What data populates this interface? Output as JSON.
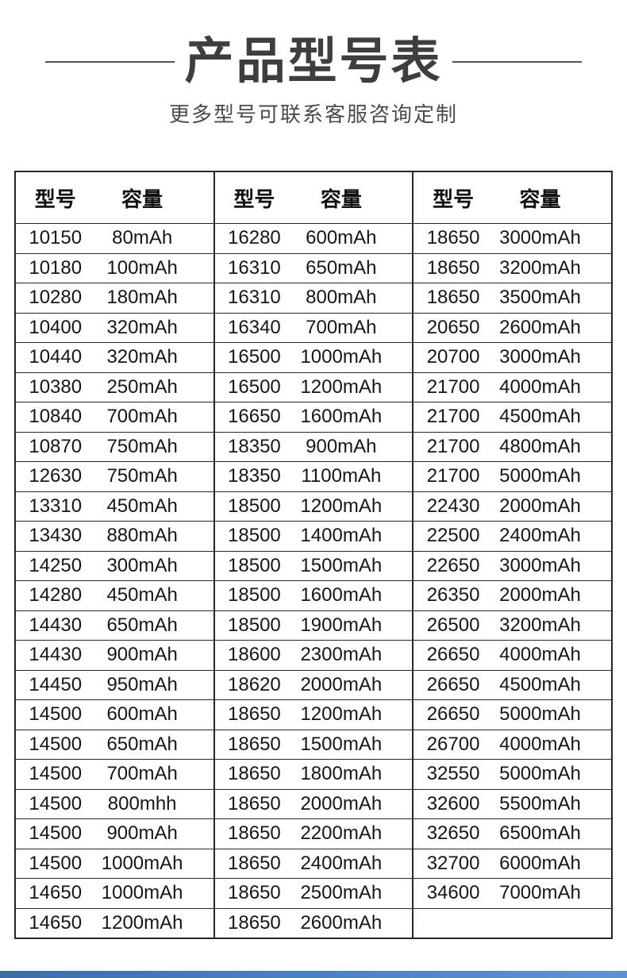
{
  "page": {
    "title": "产品型号表",
    "subtitle": "更多型号可联系客服咨询定制",
    "accent_color": "#4a80b8",
    "border_color": "#262626"
  },
  "table": {
    "column_headers": {
      "model": "型号",
      "capacity": "容量"
    },
    "groups": [
      {
        "rows": [
          {
            "model": "10150",
            "capacity": "80mAh"
          },
          {
            "model": "10180",
            "capacity": "100mAh"
          },
          {
            "model": "10280",
            "capacity": "180mAh"
          },
          {
            "model": "10400",
            "capacity": "320mAh"
          },
          {
            "model": "10440",
            "capacity": "320mAh"
          },
          {
            "model": "10380",
            "capacity": "250mAh"
          },
          {
            "model": "10840",
            "capacity": "700mAh"
          },
          {
            "model": "10870",
            "capacity": "750mAh"
          },
          {
            "model": "12630",
            "capacity": "750mAh"
          },
          {
            "model": "13310",
            "capacity": "450mAh"
          },
          {
            "model": "13430",
            "capacity": "880mAh"
          },
          {
            "model": "14250",
            "capacity": "300mAh"
          },
          {
            "model": "14280",
            "capacity": "450mAh"
          },
          {
            "model": "14430",
            "capacity": "650mAh"
          },
          {
            "model": "14430",
            "capacity": "900mAh"
          },
          {
            "model": "14450",
            "capacity": "950mAh"
          },
          {
            "model": "14500",
            "capacity": "600mAh"
          },
          {
            "model": "14500",
            "capacity": "650mAh"
          },
          {
            "model": "14500",
            "capacity": "700mAh"
          },
          {
            "model": "14500",
            "capacity": "800mhh"
          },
          {
            "model": "14500",
            "capacity": "900mAh"
          },
          {
            "model": "14500",
            "capacity": "1000mAh"
          },
          {
            "model": "14650",
            "capacity": "1000mAh"
          },
          {
            "model": "14650",
            "capacity": "1200mAh"
          }
        ]
      },
      {
        "rows": [
          {
            "model": "16280",
            "capacity": "600mAh"
          },
          {
            "model": "16310",
            "capacity": "650mAh"
          },
          {
            "model": "16310",
            "capacity": "800mAh"
          },
          {
            "model": "16340",
            "capacity": "700mAh"
          },
          {
            "model": "16500",
            "capacity": "1000mAh"
          },
          {
            "model": "16500",
            "capacity": "1200mAh"
          },
          {
            "model": "16650",
            "capacity": "1600mAh"
          },
          {
            "model": "18350",
            "capacity": "900mAh"
          },
          {
            "model": "18350",
            "capacity": "1100mAh"
          },
          {
            "model": "18500",
            "capacity": "1200mAh"
          },
          {
            "model": "18500",
            "capacity": "1400mAh"
          },
          {
            "model": "18500",
            "capacity": "1500mAh"
          },
          {
            "model": "18500",
            "capacity": "1600mAh"
          },
          {
            "model": "18500",
            "capacity": "1900mAh"
          },
          {
            "model": "18600",
            "capacity": "2300mAh"
          },
          {
            "model": "18620",
            "capacity": "2000mAh"
          },
          {
            "model": "18650",
            "capacity": "1200mAh"
          },
          {
            "model": "18650",
            "capacity": "1500mAh"
          },
          {
            "model": "18650",
            "capacity": "1800mAh"
          },
          {
            "model": "18650",
            "capacity": "2000mAh"
          },
          {
            "model": "18650",
            "capacity": "2200mAh"
          },
          {
            "model": "18650",
            "capacity": "2400mAh"
          },
          {
            "model": "18650",
            "capacity": "2500mAh"
          },
          {
            "model": "18650",
            "capacity": "2600mAh"
          }
        ]
      },
      {
        "rows": [
          {
            "model": "18650",
            "capacity": "3000mAh"
          },
          {
            "model": "18650",
            "capacity": "3200mAh"
          },
          {
            "model": "18650",
            "capacity": "3500mAh"
          },
          {
            "model": "20650",
            "capacity": "2600mAh"
          },
          {
            "model": "20700",
            "capacity": "3000mAh"
          },
          {
            "model": "21700",
            "capacity": "4000mAh"
          },
          {
            "model": "21700",
            "capacity": "4500mAh"
          },
          {
            "model": "21700",
            "capacity": "4800mAh"
          },
          {
            "model": "21700",
            "capacity": "5000mAh"
          },
          {
            "model": "22430",
            "capacity": "2000mAh"
          },
          {
            "model": "22500",
            "capacity": "2400mAh"
          },
          {
            "model": "22650",
            "capacity": "3000mAh"
          },
          {
            "model": "26350",
            "capacity": "2000mAh"
          },
          {
            "model": "26500",
            "capacity": "3200mAh"
          },
          {
            "model": "26650",
            "capacity": "4000mAh"
          },
          {
            "model": "26650",
            "capacity": "4500mAh"
          },
          {
            "model": "26650",
            "capacity": "5000mAh"
          },
          {
            "model": "26700",
            "capacity": "4000mAh"
          },
          {
            "model": "32550",
            "capacity": "5000mAh"
          },
          {
            "model": "32600",
            "capacity": "5500mAh"
          },
          {
            "model": "32650",
            "capacity": "6500mAh"
          },
          {
            "model": "32700",
            "capacity": "6000mAh"
          },
          {
            "model": "34600",
            "capacity": "7000mAh"
          },
          {
            "model": "",
            "capacity": ""
          }
        ]
      }
    ]
  }
}
